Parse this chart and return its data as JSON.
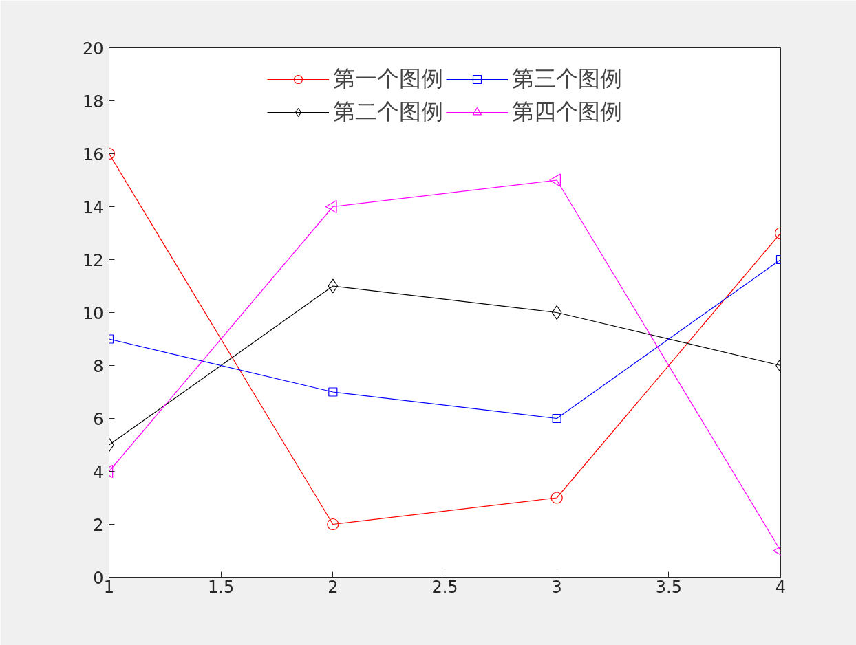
{
  "chart_data": {
    "type": "line",
    "x": [
      1,
      2,
      3,
      4
    ],
    "series": [
      {
        "name": "第一个图例",
        "color": "#ff0000",
        "marker": "circle",
        "values": [
          16,
          2,
          3,
          13
        ]
      },
      {
        "name": "第二个图例",
        "color": "#000000",
        "marker": "diamond",
        "values": [
          5,
          11,
          10,
          8
        ]
      },
      {
        "name": "第三个图例",
        "color": "#0000ff",
        "marker": "square",
        "values": [
          9,
          7,
          6,
          12
        ]
      },
      {
        "name": "第四个图例",
        "color": "#ff00ff",
        "marker": "triangle",
        "values": [
          4,
          14,
          15,
          1
        ]
      }
    ],
    "xlim": [
      1,
      4
    ],
    "xticks": [
      1,
      1.5,
      2,
      2.5,
      3,
      3.5,
      4
    ],
    "ylim": [
      0,
      20
    ],
    "yticks": [
      0,
      2,
      4,
      6,
      8,
      10,
      12,
      14,
      16,
      18,
      20
    ],
    "grid": false,
    "legend": "top",
    "line_style": "solid"
  }
}
